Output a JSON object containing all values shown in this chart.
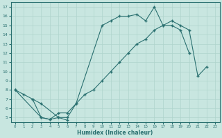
{
  "xlabel": "Humidex (Indice chaleur)",
  "bg_color": "#c8e6e0",
  "grid_color": "#afd4cc",
  "line_color": "#2a7070",
  "xlim": [
    -0.5,
    23.5
  ],
  "ylim": [
    4.5,
    17.5
  ],
  "xticks": [
    0,
    1,
    2,
    3,
    4,
    5,
    6,
    7,
    8,
    9,
    10,
    11,
    12,
    13,
    14,
    15,
    16,
    17,
    18,
    19,
    20,
    21,
    22,
    23
  ],
  "yticks": [
    5,
    6,
    7,
    8,
    9,
    10,
    11,
    12,
    13,
    14,
    15,
    16,
    17
  ],
  "line1_x": [
    0,
    1,
    2,
    3,
    5,
    6,
    7,
    10,
    11,
    12,
    13,
    14,
    15,
    16,
    17,
    18,
    19,
    20
  ],
  "line1_y": [
    8.0,
    7.5,
    7.0,
    6.5,
    5.0,
    5.0,
    6.5,
    15.0,
    15.5,
    16.0,
    16.0,
    16.2,
    15.5,
    17.0,
    15.0,
    15.0,
    14.5,
    12.0
  ],
  "line2_x": [
    0,
    3,
    4,
    5,
    6
  ],
  "line2_y": [
    8.0,
    5.0,
    4.8,
    5.0,
    4.7
  ],
  "line3_x": [
    2,
    3,
    4,
    5,
    6,
    7,
    8,
    9,
    10,
    11,
    12,
    13,
    14,
    15,
    16,
    17,
    18,
    19,
    20,
    21,
    22
  ],
  "line3_y": [
    7.0,
    5.0,
    4.8,
    5.5,
    5.5,
    6.5,
    7.5,
    8.0,
    9.0,
    10.0,
    11.0,
    12.0,
    13.0,
    13.5,
    14.5,
    15.0,
    15.5,
    15.0,
    14.5,
    9.5,
    10.5
  ]
}
